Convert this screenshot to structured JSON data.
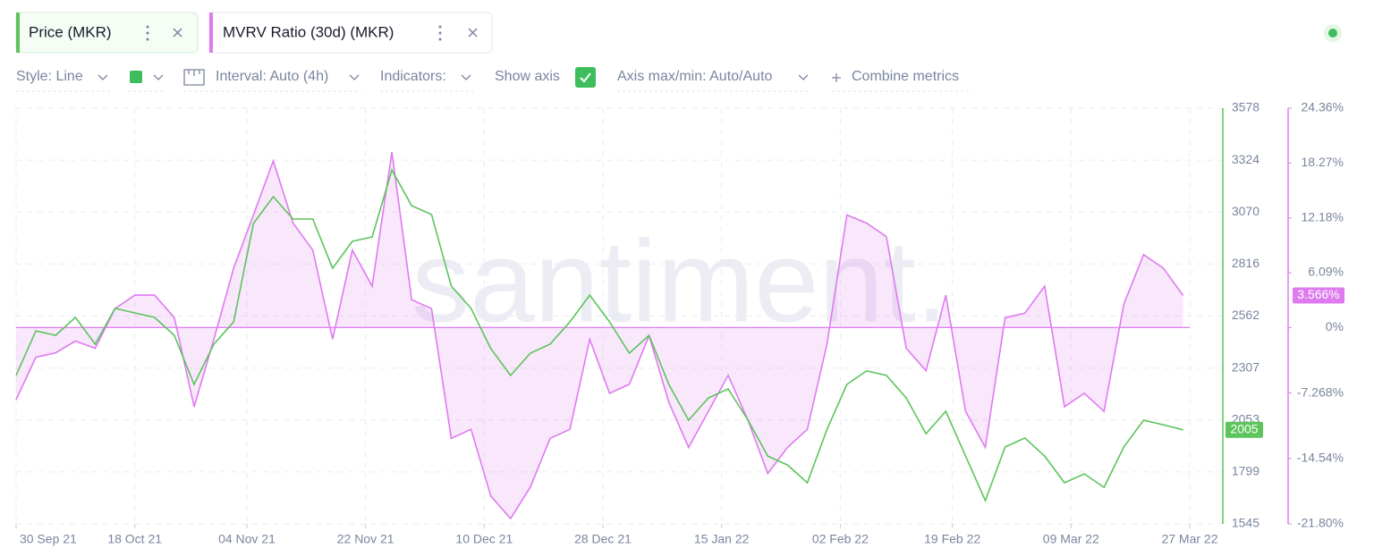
{
  "ui": {
    "toolbar": {
      "style": "Style: Line",
      "interval": "Interval: Auto (4h)",
      "indicators": "Indicators:",
      "show_axis": "Show axis",
      "axis_range": "Axis max/min: Auto/Auto",
      "combine": "Combine metrics"
    },
    "watermark": "santiment."
  },
  "chart_data": {
    "type": "line",
    "x": [
      "2021-09-30",
      "2021-10-03",
      "2021-10-06",
      "2021-10-09",
      "2021-10-12",
      "2021-10-15",
      "2021-10-18",
      "2021-10-21",
      "2021-10-24",
      "2021-10-27",
      "2021-10-30",
      "2021-11-02",
      "2021-11-05",
      "2021-11-08",
      "2021-11-11",
      "2021-11-14",
      "2021-11-17",
      "2021-11-20",
      "2021-11-23",
      "2021-11-26",
      "2021-11-29",
      "2021-12-02",
      "2021-12-05",
      "2021-12-08",
      "2021-12-11",
      "2021-12-14",
      "2021-12-17",
      "2021-12-20",
      "2021-12-23",
      "2021-12-26",
      "2021-12-29",
      "2022-01-01",
      "2022-01-04",
      "2022-01-07",
      "2022-01-10",
      "2022-01-13",
      "2022-01-16",
      "2022-01-19",
      "2022-01-22",
      "2022-01-25",
      "2022-01-28",
      "2022-01-31",
      "2022-02-03",
      "2022-02-06",
      "2022-02-09",
      "2022-02-12",
      "2022-02-15",
      "2022-02-18",
      "2022-02-21",
      "2022-02-24",
      "2022-02-27",
      "2022-03-02",
      "2022-03-05",
      "2022-03-08",
      "2022-03-11",
      "2022-03-14",
      "2022-03-17",
      "2022-03-20",
      "2022-03-23",
      "2022-03-26"
    ],
    "xlim": [
      "2021-09-30",
      "2022-03-27"
    ],
    "xticks": [
      {
        "value": "2021-09-30",
        "label": "30 Sep 21"
      },
      {
        "value": "2021-10-18",
        "label": "18 Oct 21"
      },
      {
        "value": "2021-11-04",
        "label": "04 Nov 21"
      },
      {
        "value": "2021-11-22",
        "label": "22 Nov 21"
      },
      {
        "value": "2021-12-10",
        "label": "10 Dec 21"
      },
      {
        "value": "2021-12-28",
        "label": "28 Dec 21"
      },
      {
        "value": "2022-01-15",
        "label": "15 Jan 22"
      },
      {
        "value": "2022-02-02",
        "label": "02 Feb 22"
      },
      {
        "value": "2022-02-19",
        "label": "19 Feb 22"
      },
      {
        "value": "2022-03-09",
        "label": "09 Mar 22"
      },
      {
        "value": "2022-03-27",
        "label": "27 Mar 22"
      }
    ],
    "ylim": [
      1545,
      3578
    ],
    "yticks": [
      3578,
      3324,
      3070,
      2816,
      2562,
      2307,
      2053,
      1799,
      1545
    ],
    "y2lim": [
      -21.8,
      24.36
    ],
    "y2ticks": [
      {
        "value": 24.36,
        "label": "24.36%"
      },
      {
        "value": 18.27,
        "label": "18.27%"
      },
      {
        "value": 12.18,
        "label": "12.18%"
      },
      {
        "value": 6.09,
        "label": "6.09%"
      },
      {
        "value": 0,
        "label": "0%"
      },
      {
        "value": -7.268,
        "label": "-7.268%"
      },
      {
        "value": -14.54,
        "label": "-14.54%"
      },
      {
        "value": -21.8,
        "label": "-21.80%"
      }
    ],
    "grid": true,
    "series": [
      {
        "name": "Price (MKR)",
        "color": "#5cc45c",
        "values": [
          2271,
          2489,
          2467,
          2555,
          2424,
          2599,
          2577,
          2555,
          2467,
          2227,
          2424,
          2533,
          3014,
          3145,
          3036,
          3036,
          2795,
          2927,
          2948,
          3276,
          3101,
          3058,
          2708,
          2599,
          2402,
          2271,
          2380,
          2424,
          2533,
          2664,
          2533,
          2380,
          2467,
          2227,
          2052,
          2161,
          2205,
          2052,
          1877,
          1833,
          1746,
          2008,
          2227,
          2293,
          2271,
          2161,
          1986,
          2096,
          1877,
          1659,
          1921,
          1965,
          1877,
          1746,
          1790,
          1724,
          1921,
          2052,
          2030,
          2005
        ]
      },
      {
        "name": "MVRV Ratio (30d) (MKR)",
        "color": "#de7bef",
        "axis": "y2",
        "area": true,
        "values": [
          -8,
          -3.3,
          -2.8,
          -1.5,
          -2.3,
          2.1,
          3.6,
          3.6,
          1.1,
          -8.8,
          -1.3,
          6.6,
          12.5,
          18.5,
          11.6,
          8.6,
          -1.3,
          8.6,
          4.6,
          19.5,
          3.1,
          2.1,
          -12.3,
          -11.3,
          -18.7,
          -21.2,
          -17.7,
          -12.3,
          -11.3,
          -1.3,
          -7.3,
          -6.3,
          -0.9,
          -8.3,
          -13.3,
          -9.3,
          -5.3,
          -10.3,
          -16.2,
          -13.3,
          -11.3,
          -1.8,
          12.5,
          11.6,
          10.1,
          -2.3,
          -4.8,
          3.6,
          -9.3,
          -13.3,
          1.1,
          1.6,
          4.6,
          -8.8,
          -7.3,
          -9.3,
          2.6,
          8.1,
          6.6,
          3.566
        ],
        "last_value_label": "3.566%"
      }
    ]
  }
}
